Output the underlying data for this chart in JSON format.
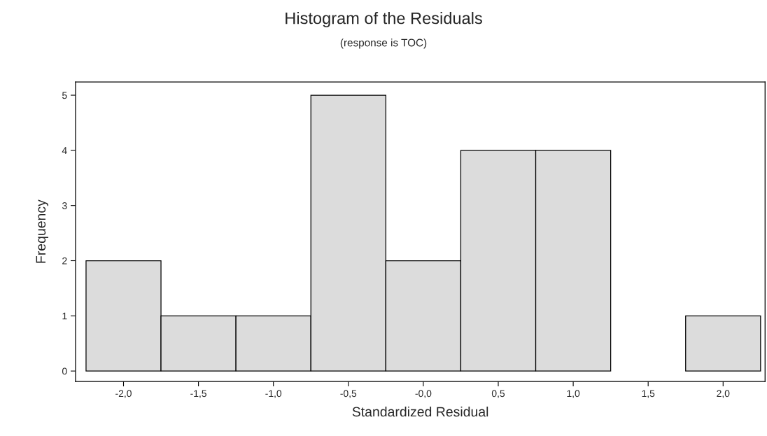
{
  "chart_data": {
    "type": "histogram",
    "title": "Histogram of the Residuals",
    "subtitle": "(response is TOC)",
    "xlabel": "Standardized Residual",
    "ylabel": "Frequency",
    "bins": [
      -2.25,
      -1.75,
      -1.25,
      -0.75,
      -0.25,
      0.25,
      0.75,
      1.25,
      1.75,
      2.25
    ],
    "values": [
      2,
      1,
      1,
      5,
      2,
      4,
      4,
      0,
      1
    ],
    "color": "#dcdcdc",
    "xlim": [
      -2.32,
      2.28
    ],
    "ylim": [
      -0.19,
      5.24
    ],
    "xticks": [
      {
        "value": -2.0,
        "label": "-2,0"
      },
      {
        "value": -1.5,
        "label": "-1,5"
      },
      {
        "value": -1.0,
        "label": "-1,0"
      },
      {
        "value": -0.5,
        "label": "-0,5"
      },
      {
        "value": 0.0,
        "label": "-0,0"
      },
      {
        "value": 0.5,
        "label": "0,5"
      },
      {
        "value": 1.0,
        "label": "1,0"
      },
      {
        "value": 1.5,
        "label": "1,5"
      },
      {
        "value": 2.0,
        "label": "2,0"
      }
    ],
    "yticks": [
      0,
      1,
      2,
      3,
      4,
      5
    ],
    "grid": false
  }
}
